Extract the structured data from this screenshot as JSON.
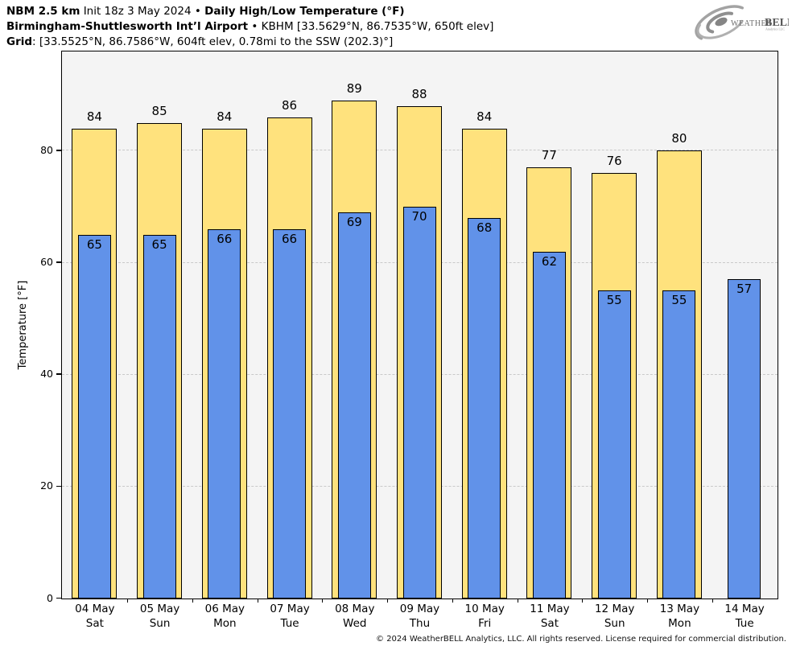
{
  "header": {
    "model": "NBM 2.5 km",
    "init": "Init 18z 3 May 2024",
    "separator": "•",
    "product": "Daily High/Low Temperature (°F)",
    "station_name": "Birmingham-Shuttlesworth Int’l Airport",
    "station_info": "KBHM [33.5629°N, 86.7535°W, 650ft elev]",
    "grid_label": "Grid",
    "grid_info": ": [33.5525°N, 86.7586°W, 604ft elev, 0.78mi to the SSW (202.3)°]"
  },
  "logo": {
    "brand_weather": "Weather",
    "brand_bell": "BELL",
    "subtext": "Analytics LLC"
  },
  "chart_data": {
    "type": "bar",
    "title": "Daily High/Low Temperature (°F)",
    "ylabel": "Temperature [°F]",
    "ylim": [
      0,
      97.6
    ],
    "yticks": [
      0,
      20,
      40,
      60,
      80
    ],
    "grid": true,
    "legend_position": "none",
    "plot_bg": "#f4f4f4",
    "gridline_color": "#c9c9c9",
    "categories": [
      "04 May",
      "05 May",
      "06 May",
      "07 May",
      "08 May",
      "09 May",
      "10 May",
      "11 May",
      "12 May",
      "13 May",
      "14 May"
    ],
    "weekdays": [
      "Sat",
      "Sun",
      "Mon",
      "Tue",
      "Wed",
      "Thu",
      "Fri",
      "Sat",
      "Sun",
      "Mon",
      "Tue"
    ],
    "series": [
      {
        "name": "High",
        "color": "#FFE27D",
        "values": [
          84,
          85,
          84,
          86,
          89,
          88,
          84,
          77,
          76,
          80,
          null
        ]
      },
      {
        "name": "Low",
        "color": "#6192E9",
        "values": [
          65,
          65,
          66,
          66,
          69,
          70,
          68,
          62,
          55,
          55,
          57
        ]
      }
    ]
  },
  "footer": {
    "copyright": "© 2024 WeatherBELL Analytics, LLC. All rights reserved. License required for commercial distribution."
  }
}
